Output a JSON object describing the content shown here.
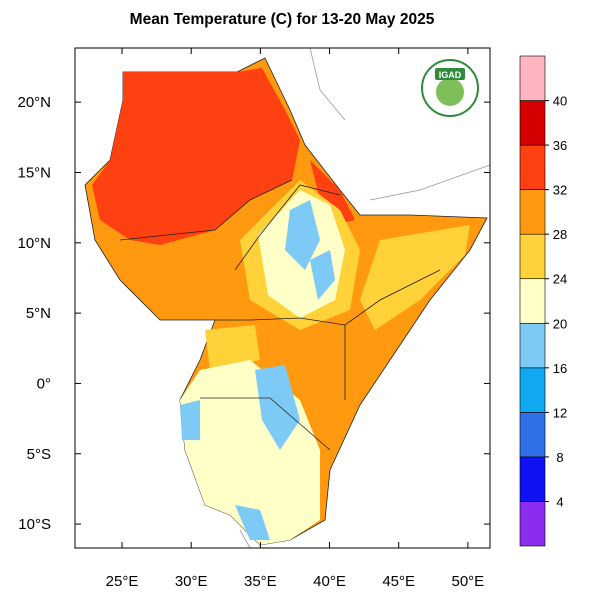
{
  "title": "Mean Temperature (C) for 13-20 May 2025",
  "map": {
    "lonlim": [
      21.6,
      51.6
    ],
    "latlim": [
      -11.7,
      23.85
    ],
    "lonticks": [
      {
        "value": 25,
        "label": "25°E"
      },
      {
        "value": 30,
        "label": "30°E"
      },
      {
        "value": 35,
        "label": "35°E"
      },
      {
        "value": 40,
        "label": "40°E"
      },
      {
        "value": 45,
        "label": "45°E"
      },
      {
        "value": 50,
        "label": "50°E"
      }
    ],
    "latticks": [
      {
        "value": 20,
        "label": "20°N"
      },
      {
        "value": 15,
        "label": "15°N"
      },
      {
        "value": 10,
        "label": "10°N"
      },
      {
        "value": 5,
        "label": "5°N"
      },
      {
        "value": 0,
        "label": "0°"
      },
      {
        "value": -5,
        "label": "5°S"
      },
      {
        "value": -10,
        "label": "10°S"
      }
    ]
  },
  "colorbar": {
    "levels": [
      4,
      8,
      12,
      16,
      20,
      24,
      28,
      32,
      36,
      40
    ],
    "colors": [
      "#8b2cf0",
      "#1010f5",
      "#3070e8",
      "#10a8f0",
      "#7ccaf5",
      "#ffffc8",
      "#ffd23a",
      "#ff9a10",
      "#ff4010",
      "#d40000",
      "#ffb5c0"
    ]
  },
  "logo": {
    "text": "IGAD"
  }
}
